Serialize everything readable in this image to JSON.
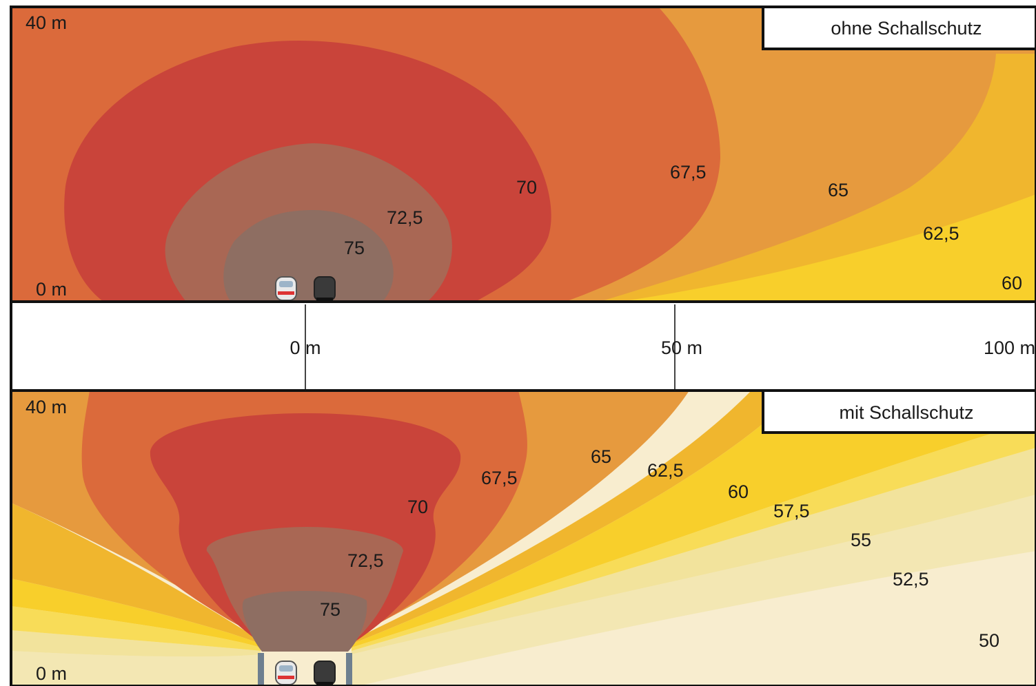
{
  "colors": {
    "level_75": "#8e6e62",
    "level_72_5": "#a96754",
    "level_70": "#c9443a",
    "level_67_5": "#db6a3b",
    "level_65": "#e69a3e",
    "level_62_5": "#f0b62e",
    "level_60": "#f8cf2b",
    "level_57_5": "#f8dc58",
    "level_55": "#f2e39c",
    "level_52_5": "#f3e7b3",
    "level_50": "#f8edcf",
    "frame": "#111111",
    "title_box": "#ffffff"
  },
  "icons": [
    "train-front-icon",
    "train-rear-icon"
  ],
  "top_panel": {
    "title": "ohne Schallschutz",
    "y_top": "40 m",
    "y_bottom": "0 m",
    "contours": [
      "75",
      "72,5",
      "70",
      "67,5",
      "65",
      "62,5",
      "60"
    ]
  },
  "axis": {
    "ticks": [
      "0 m",
      "50 m",
      "100 m"
    ]
  },
  "bottom_panel": {
    "title": "mit Schallschutz",
    "y_top": "40 m",
    "y_bottom": "0 m",
    "contours": [
      "75",
      "72,5",
      "70",
      "67,5",
      "65",
      "62,5",
      "60",
      "57,5",
      "55",
      "52,5",
      "50"
    ]
  }
}
